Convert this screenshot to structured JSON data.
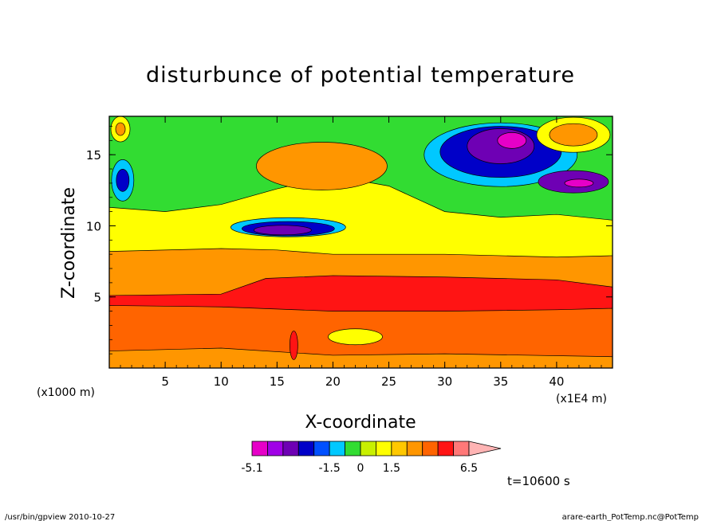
{
  "chart_data": {
    "type": "heatmap",
    "title": "disturbunce of potential temperature",
    "xlabel": "X-coordinate",
    "ylabel": "Z-coordinate",
    "x_unit_left": "(x1000 m)",
    "x_unit_right": "(x1E4 m)",
    "xlim": [
      0,
      45
    ],
    "ylim": [
      0,
      17.7
    ],
    "x_ticks": [
      5,
      10,
      15,
      20,
      25,
      30,
      35,
      40
    ],
    "y_ticks": [
      5,
      10,
      15
    ],
    "time_label": "t=10600 s",
    "colorbar": {
      "colors": [
        "#e600c8",
        "#a000e6",
        "#6e00b4",
        "#0000c8",
        "#0050ff",
        "#00c8ff",
        "#32dc32",
        "#c8f000",
        "#ffff00",
        "#ffc800",
        "#ff9600",
        "#ff6400",
        "#ff1414",
        "#ff7878",
        "#ffb4b4"
      ],
      "tick_labels": [
        "-5.1",
        "-1.5",
        "0",
        "1.5",
        "6.5"
      ]
    },
    "footer_left": "/usr/bin/gpview   2010-10-27",
    "footer_right": "arare-earth_PotTemp.nc@PotTemp"
  },
  "colors": {
    "background": "#ffffff",
    "neg_strong": "#e600c8",
    "purple": "#6e00b4",
    "blue": "#0000c8",
    "cyan": "#00c8ff",
    "green": "#32dc32",
    "yellow": "#ffff00",
    "orange": "#ff9600",
    "darkorange": "#ff6400",
    "red": "#ff1414"
  }
}
